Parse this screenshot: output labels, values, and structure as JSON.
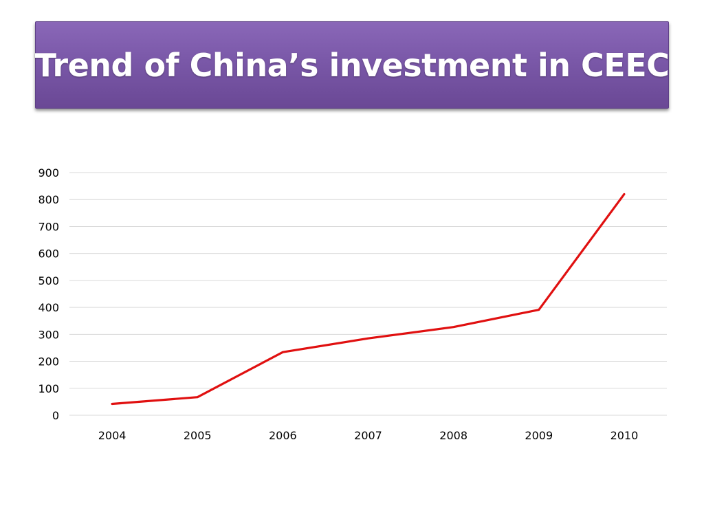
{
  "slide": {
    "title": "Trend of China’s investment in CEEC",
    "colors": {
      "banner": "#7a58a8",
      "title_text": "#ffffff",
      "line": "#e01010",
      "gridline": "#d9d9d9"
    }
  },
  "chart_data": {
    "type": "line",
    "title": "",
    "xlabel": "",
    "ylabel": "",
    "categories": [
      "2004",
      "2005",
      "2006",
      "2007",
      "2008",
      "2009",
      "2010"
    ],
    "series": [
      {
        "values": [
          42,
          67,
          234,
          285,
          327,
          391,
          820
        ]
      }
    ],
    "ylim": [
      0,
      900
    ],
    "yticks": [
      0,
      100,
      200,
      300,
      400,
      500,
      600,
      700,
      800,
      900
    ],
    "ytick_labels": [
      "0",
      "100",
      "200",
      "300",
      "400",
      "500",
      "600",
      "700",
      "800",
      "900"
    ],
    "grid": true,
    "legend": "none"
  }
}
